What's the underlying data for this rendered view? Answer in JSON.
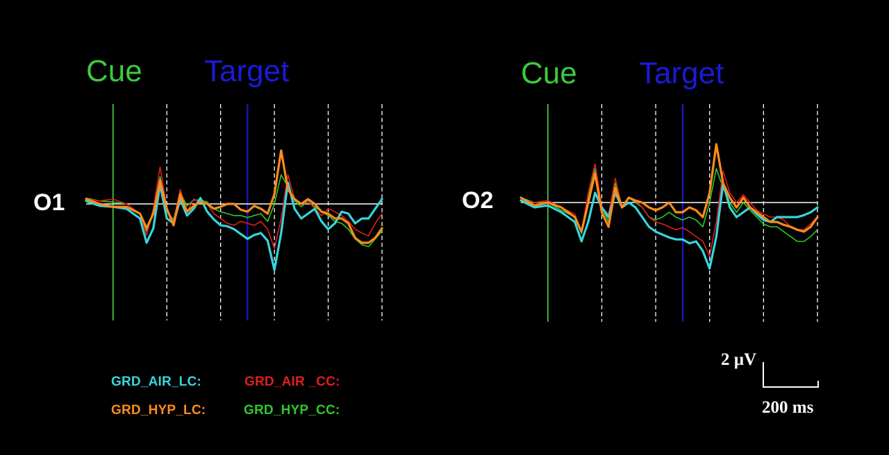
{
  "colors": {
    "background": "#000000",
    "baseline": "#ffffff",
    "cue": "#3ec93e",
    "target": "#1a1ad8",
    "grid": "#ffffff"
  },
  "panels_text": {
    "left": {
      "cue": "Cue",
      "target": "Target",
      "channel": "O1"
    },
    "right": {
      "cue": "Cue",
      "target": "Target",
      "channel": "O2"
    }
  },
  "legend": [
    {
      "label": "GRD_AIR_LC:",
      "color": "#36d6dd"
    },
    {
      "label": "GRD_AIR _CC:",
      "color": "#e01e1e"
    },
    {
      "label": "GRD_HYP_LC:",
      "color": "#ff8c1a"
    },
    {
      "label": "GRD_HYP_CC:",
      "color": "#2ec82e"
    }
  ],
  "scale_bar": {
    "amplitude": "2 µV",
    "time": "200 ms"
  },
  "chart_data": [
    {
      "type": "line",
      "channel": "O1",
      "x_unit": "ms",
      "y_unit": "µV",
      "xlim": [
        -100,
        1000
      ],
      "ylim": [
        -8,
        6.5
      ],
      "cue_time": 0,
      "target_time": 500,
      "gridlines_x": [
        200,
        400,
        600,
        800,
        1000
      ],
      "x": [
        -100,
        -50,
        0,
        50,
        100,
        125,
        150,
        175,
        200,
        225,
        250,
        275,
        300,
        325,
        350,
        375,
        400,
        425,
        450,
        475,
        500,
        525,
        550,
        575,
        600,
        625,
        650,
        675,
        700,
        725,
        750,
        775,
        800,
        825,
        850,
        875,
        900,
        925,
        950,
        975,
        1000
      ],
      "series": [
        {
          "name": "GRD_AIR_LC:",
          "color": "#36d6dd",
          "values": [
            0.3,
            -0.2,
            -0.3,
            -0.5,
            -1.5,
            -4.0,
            -2.5,
            2.0,
            -1.5,
            -2.0,
            0.5,
            -1.2,
            -0.5,
            0.6,
            -0.8,
            -1.6,
            -2.2,
            -2.3,
            -2.6,
            -3.1,
            -3.6,
            -3.2,
            -3.0,
            -3.8,
            -6.8,
            -3.0,
            2.2,
            -0.5,
            -1.5,
            -1.0,
            -0.5,
            -1.8,
            -2.6,
            -2.0,
            -0.8,
            -1.0,
            -2.0,
            -1.5,
            -1.5,
            -0.5,
            0.5
          ]
        },
        {
          "name": "GRD_AIR _CC:",
          "color": "#e01e1e",
          "values": [
            0.5,
            0.3,
            0.5,
            0.0,
            -1.0,
            -3.2,
            -0.5,
            3.8,
            -0.5,
            -1.8,
            1.5,
            -0.8,
            0.5,
            0.2,
            0.0,
            -1.0,
            -1.5,
            -2.0,
            -2.2,
            -1.8,
            -2.0,
            -2.2,
            -1.8,
            -2.6,
            -4.6,
            -1.5,
            3.0,
            0.5,
            0.0,
            0.3,
            -0.5,
            -1.2,
            -0.5,
            -0.8,
            -1.2,
            -1.8,
            -2.6,
            -3.0,
            -3.3,
            -2.0,
            -1.0
          ]
        },
        {
          "name": "GRD_HYP_LC:",
          "color": "#ff8c1a",
          "values": [
            0.5,
            0.0,
            -0.3,
            -0.3,
            -1.0,
            -2.5,
            -1.0,
            2.4,
            -0.5,
            -2.2,
            1.0,
            -0.8,
            -0.2,
            0.2,
            0.0,
            -0.5,
            -0.3,
            0.0,
            0.0,
            -0.6,
            -0.8,
            -0.2,
            -0.5,
            -1.0,
            1.0,
            5.5,
            1.5,
            0.5,
            0.0,
            0.5,
            0.0,
            -0.8,
            -1.0,
            -1.5,
            -1.5,
            -2.0,
            -3.5,
            -4.0,
            -4.0,
            -3.5,
            -2.5
          ]
        },
        {
          "name": "GRD_HYP_CC:",
          "color": "#2ec82e",
          "values": [
            0.6,
            0.3,
            0.2,
            0.0,
            -1.0,
            -2.8,
            -1.0,
            2.8,
            -0.8,
            -1.6,
            1.2,
            -0.2,
            0.4,
            0.4,
            0.2,
            -0.5,
            -0.8,
            -1.0,
            -1.2,
            -1.2,
            -1.4,
            -1.2,
            -1.0,
            -1.8,
            0.0,
            3.0,
            1.8,
            0.3,
            -0.3,
            0.3,
            -0.3,
            -0.8,
            -1.2,
            -1.8,
            -2.0,
            -2.6,
            -3.6,
            -4.2,
            -4.4,
            -3.6,
            -2.8
          ]
        }
      ]
    },
    {
      "type": "line",
      "channel": "O2",
      "x_unit": "ms",
      "y_unit": "µV",
      "xlim": [
        -100,
        1000
      ],
      "ylim": [
        -8,
        6.5
      ],
      "cue_time": 0,
      "target_time": 500,
      "gridlines_x": [
        200,
        400,
        600,
        800,
        1000
      ],
      "x": [
        -100,
        -50,
        0,
        50,
        100,
        125,
        150,
        175,
        200,
        225,
        250,
        275,
        300,
        325,
        350,
        375,
        400,
        425,
        450,
        475,
        500,
        525,
        550,
        575,
        600,
        625,
        650,
        675,
        700,
        725,
        750,
        775,
        800,
        825,
        850,
        875,
        900,
        925,
        950,
        975,
        1000
      ],
      "series": [
        {
          "name": "GRD_AIR_LC:",
          "color": "#36d6dd",
          "values": [
            0.2,
            -0.5,
            -0.3,
            -1.0,
            -2.0,
            -4.0,
            -2.0,
            1.0,
            -0.5,
            -1.5,
            1.0,
            -0.5,
            0.0,
            -0.5,
            -1.5,
            -2.5,
            -3.0,
            -3.3,
            -3.6,
            -3.8,
            -3.8,
            -4.2,
            -4.0,
            -5.0,
            -6.8,
            -3.5,
            2.0,
            -0.5,
            -1.5,
            -1.0,
            -0.5,
            -1.2,
            -1.8,
            -2.0,
            -1.5,
            -1.5,
            -1.5,
            -1.5,
            -1.3,
            -1.0,
            -0.5
          ]
        },
        {
          "name": "GRD_AIR _CC:",
          "color": "#e01e1e",
          "values": [
            0.3,
            0.0,
            0.2,
            -0.5,
            -1.2,
            -3.0,
            1.0,
            4.0,
            -0.5,
            -1.2,
            2.5,
            -0.5,
            0.5,
            0.2,
            -0.5,
            -1.5,
            -2.0,
            -2.2,
            -2.5,
            -2.8,
            -2.6,
            -3.0,
            -3.5,
            -4.0,
            -5.5,
            -2.0,
            3.2,
            1.0,
            0.0,
            0.8,
            0.0,
            -0.8,
            -1.2,
            -1.5,
            -1.5,
            -1.8,
            -2.5,
            -2.8,
            -2.8,
            -2.2,
            -1.5
          ]
        },
        {
          "name": "GRD_HYP_LC:",
          "color": "#ff8c1a",
          "values": [
            0.5,
            -0.3,
            0.0,
            -0.5,
            -1.5,
            -3.0,
            0.0,
            3.0,
            -1.0,
            -2.5,
            1.5,
            -0.5,
            0.5,
            0.2,
            0.0,
            -0.5,
            -0.8,
            -0.5,
            0.0,
            -1.0,
            -1.0,
            -0.5,
            -0.8,
            -1.5,
            1.0,
            6.0,
            2.0,
            0.5,
            -0.5,
            0.5,
            -0.5,
            -1.0,
            -1.5,
            -2.0,
            -2.0,
            -2.3,
            -2.5,
            -2.8,
            -3.0,
            -2.5,
            -1.5
          ]
        },
        {
          "name": "GRD_HYP_CC:",
          "color": "#2ec82e",
          "values": [
            0.5,
            0.0,
            0.0,
            -0.8,
            -1.5,
            -3.2,
            0.5,
            3.5,
            -0.5,
            -2.0,
            2.0,
            -0.5,
            0.5,
            0.0,
            -0.5,
            -1.5,
            -1.8,
            -1.5,
            -1.0,
            -1.5,
            -1.8,
            -1.5,
            -1.8,
            -2.5,
            0.0,
            3.5,
            1.5,
            0.0,
            -1.0,
            0.0,
            -0.8,
            -1.5,
            -2.2,
            -2.5,
            -2.5,
            -3.0,
            -3.5,
            -4.0,
            -4.0,
            -3.5,
            -2.8
          ]
        }
      ]
    }
  ]
}
